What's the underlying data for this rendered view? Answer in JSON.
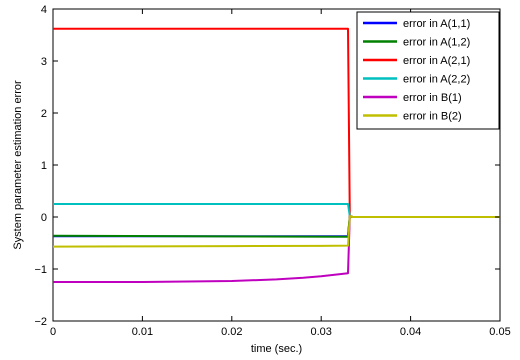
{
  "chart_data": {
    "type": "line",
    "title": "",
    "xlabel": "time (sec.)",
    "ylabel": "System parameter estimation error",
    "xlim": [
      0,
      0.05
    ],
    "ylim": [
      -2,
      4
    ],
    "xticks": [
      0,
      0.01,
      0.02,
      0.03,
      0.04,
      0.05
    ],
    "xtick_labels": [
      "0",
      "0.01",
      "0.02",
      "0.03",
      "0.04",
      "0.05"
    ],
    "yticks": [
      -2,
      -1,
      0,
      1,
      2,
      3,
      4
    ],
    "ytick_labels": [
      "−2",
      "−1",
      "0",
      "1",
      "2",
      "3",
      "4"
    ],
    "grid": false,
    "legend_position": "top-right",
    "series": [
      {
        "name": "error in A(1,1)",
        "color": "#0000ff",
        "x": [
          0,
          0.033,
          0.0332,
          0.0335,
          0.05
        ],
        "y": [
          -0.37,
          -0.37,
          0.02,
          0.0,
          0.0
        ]
      },
      {
        "name": "error in A(1,2)",
        "color": "#008000",
        "x": [
          0,
          0.033,
          0.0332,
          0.0335,
          0.05
        ],
        "y": [
          -0.36,
          -0.38,
          0.02,
          0.0,
          0.0
        ]
      },
      {
        "name": "error in A(2,1)",
        "color": "#ff0000",
        "x": [
          0,
          0.033,
          0.0332,
          0.0335,
          0.05
        ],
        "y": [
          3.62,
          3.62,
          0.02,
          0.0,
          0.0
        ]
      },
      {
        "name": "error in A(2,2)",
        "color": "#00bfbf",
        "x": [
          0,
          0.033,
          0.0332,
          0.0335,
          0.05
        ],
        "y": [
          0.25,
          0.25,
          0.02,
          0.0,
          0.0
        ]
      },
      {
        "name": "error in B(1)",
        "color": "#bf00bf",
        "x": [
          0,
          0.005,
          0.01,
          0.015,
          0.02,
          0.025,
          0.028,
          0.03,
          0.032,
          0.033,
          0.0332,
          0.0335,
          0.05
        ],
        "y": [
          -1.25,
          -1.25,
          -1.25,
          -1.24,
          -1.23,
          -1.2,
          -1.17,
          -1.14,
          -1.1,
          -1.08,
          0.02,
          0.0,
          0.0
        ]
      },
      {
        "name": "error in B(2)",
        "color": "#bfbf00",
        "x": [
          0,
          0.01,
          0.02,
          0.03,
          0.033,
          0.0332,
          0.0335,
          0.05
        ],
        "y": [
          -0.57,
          -0.565,
          -0.56,
          -0.555,
          -0.55,
          0.02,
          0.0,
          0.0
        ]
      }
    ]
  }
}
